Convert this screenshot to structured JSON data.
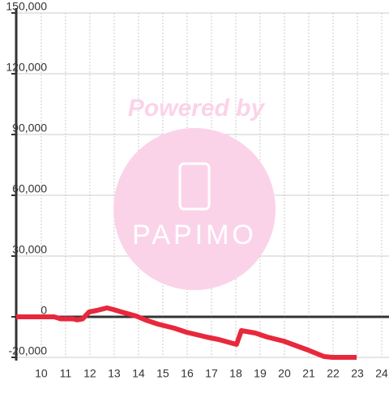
{
  "chart_data": {
    "type": "line",
    "x": [
      8.97,
      10.53,
      10.8,
      11.3,
      11.47,
      11.7,
      11.97,
      12.3,
      12.7,
      12.97,
      13.3,
      13.9,
      14.3,
      14.8,
      15.47,
      15.97,
      16.8,
      17.3,
      17.9,
      18.03,
      18.23,
      18.8,
      19.3,
      19.97,
      20.97,
      21.63,
      21.97,
      22.97
    ],
    "series": [
      {
        "color": "#e8283c",
        "values": [
          0,
          0,
          -1000,
          -1000,
          -1500,
          -1000,
          2400,
          3200,
          4400,
          3600,
          2400,
          400,
          -1600,
          -3600,
          -5600,
          -7600,
          -10000,
          -11200,
          -13200,
          -13600,
          -6800,
          -8000,
          -10000,
          -12000,
          -16400,
          -19600,
          -20000,
          -20000
        ]
      }
    ],
    "xlim": [
      8.97,
      24.3
    ],
    "xticks": [
      10,
      11,
      12,
      13,
      14,
      15,
      16,
      17,
      18,
      19,
      20,
      21,
      22,
      23,
      24
    ],
    "ylim": [
      -20000,
      150000
    ],
    "yticks": [
      {
        "value": -20000,
        "label": "-20,000"
      },
      0,
      {
        "value": 30000,
        "label": "30,000"
      },
      {
        "value": 60000,
        "label": "60,000"
      },
      {
        "value": 90000,
        "label": "90,000"
      },
      {
        "value": 120000,
        "label": "120,000"
      },
      {
        "value": 150000,
        "label": "150,000"
      }
    ],
    "grid": true,
    "watermark": {
      "text": "Powered by",
      "logo": "PAPIMO"
    }
  }
}
